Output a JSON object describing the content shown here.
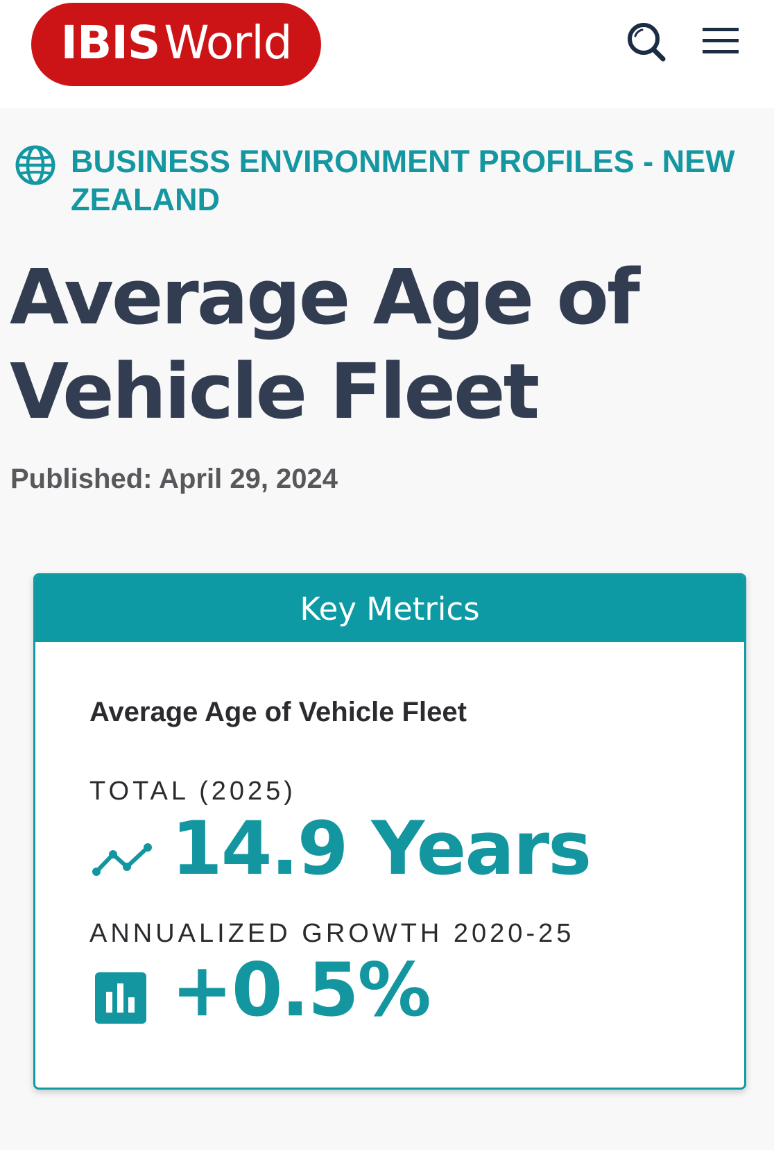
{
  "header": {
    "logo_bold": "IBIS",
    "logo_light": "World",
    "colors": {
      "logo_bg": "#cc1417",
      "icon": "#1b2c45"
    },
    "icons": [
      "search-icon",
      "hamburger-menu-icon"
    ]
  },
  "category": {
    "text": "BUSINESS ENVIRONMENT PROFILES - NEW ZEALAND",
    "icon": "globe-icon",
    "color": "#1597a2"
  },
  "page": {
    "title": "Average Age of Vehicle Fleet",
    "published_label": "Published:",
    "published_date": "April 29, 2024"
  },
  "key_metrics": {
    "header": "Key Metrics",
    "accent_color": "#0d9aa4",
    "metric_name": "Average Age of Vehicle Fleet",
    "total_label": "TOTAL (2025)",
    "total_value": "14.9 Years",
    "total_icon": "trend-line-icon",
    "growth_label": "ANNUALIZED GROWTH 2020-25",
    "growth_value": "+0.5%",
    "growth_icon": "bar-chart-icon"
  }
}
